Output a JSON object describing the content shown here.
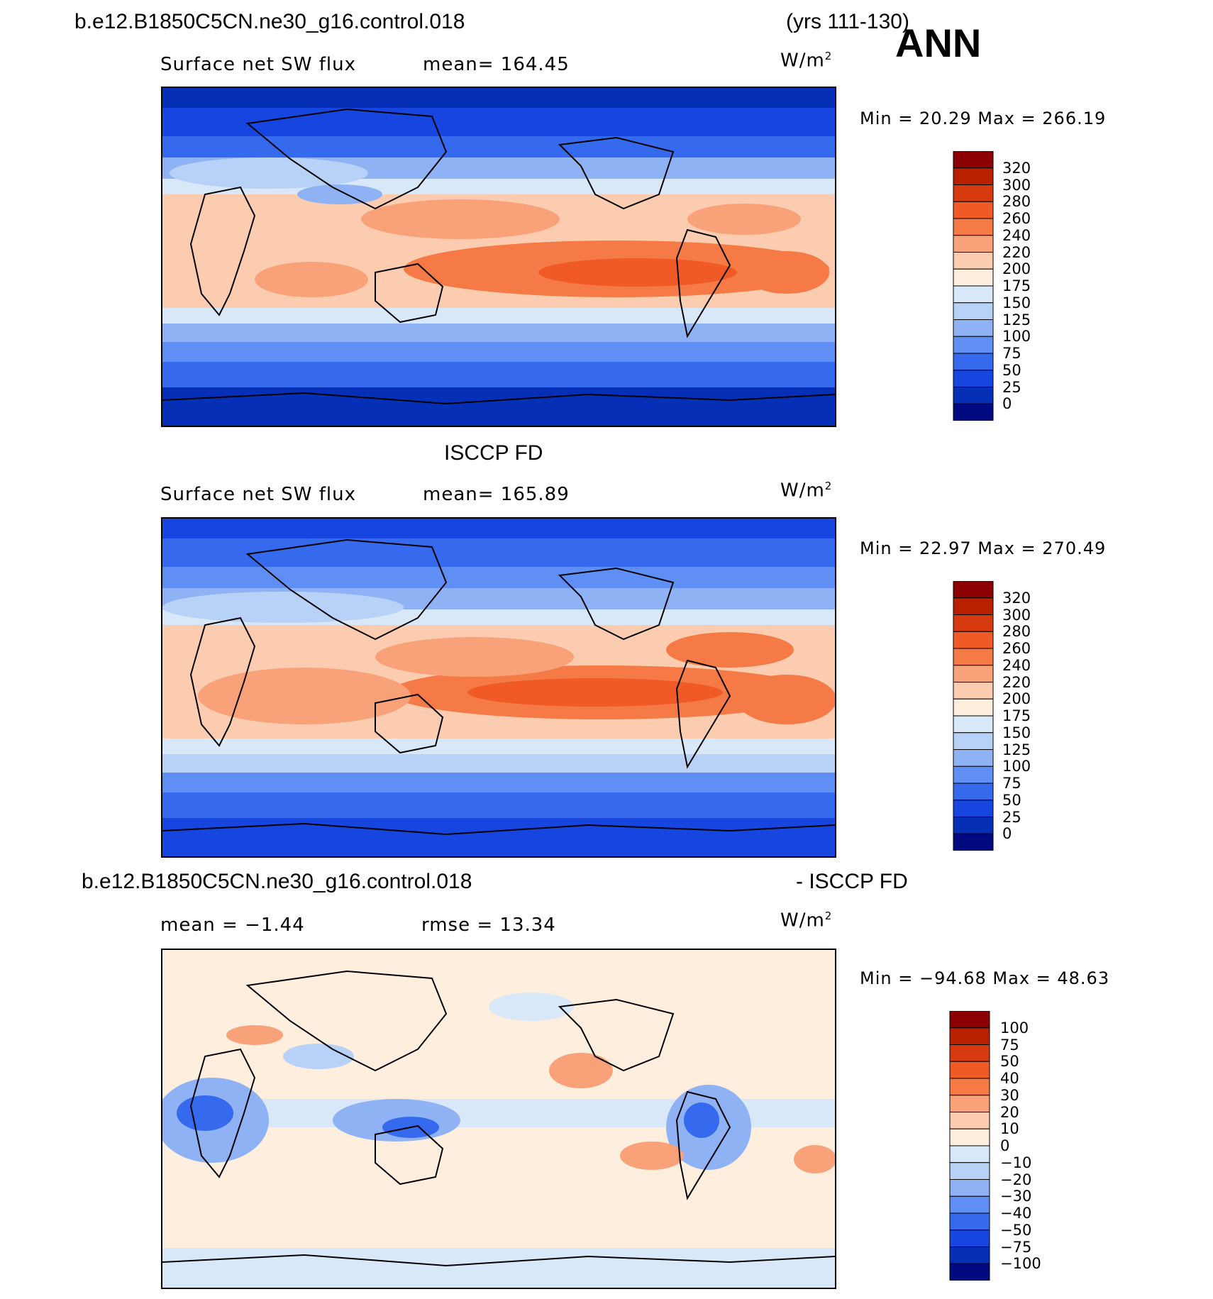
{
  "header": {
    "case_name": "b.e12.B1850C5CN.ne30_g16.control.018",
    "years": "(yrs 111-130)",
    "season": "ANN"
  },
  "panels": [
    {
      "id": "model",
      "title": "",
      "variable": "Surface net SW flux",
      "stat_left": "mean=  164.45",
      "units": "W/m",
      "units_sup": "2",
      "minmax": "Min =   20.29  Max  =  266.19",
      "colorbar_levels": [
        "320",
        "300",
        "280",
        "260",
        "240",
        "220",
        "200",
        "175",
        "150",
        "125",
        "100",
        "75",
        "50",
        "25",
        "0"
      ]
    },
    {
      "id": "obs",
      "title": "ISCCP FD",
      "variable": "Surface net SW flux",
      "stat_left": "mean=  165.89",
      "units": "W/m",
      "units_sup": "2",
      "minmax": "Min =   22.97  Max  =  270.49",
      "colorbar_levels": [
        "320",
        "300",
        "280",
        "260",
        "240",
        "220",
        "200",
        "175",
        "150",
        "125",
        "100",
        "75",
        "50",
        "25",
        "0"
      ]
    },
    {
      "id": "diff",
      "title_left": "b.e12.B1850C5CN.ne30_g16.control.018",
      "title_right": "- ISCCP FD",
      "stat_left": "mean =   −1.44",
      "stat_right": "rmse =    13.34",
      "units": "W/m",
      "units_sup": "2",
      "minmax": "Min = −94.68  Max  =    48.63",
      "colorbar_levels": [
        "100",
        "75",
        "50",
        "40",
        "30",
        "20",
        "10",
        "0",
        "−10",
        "−20",
        "−30",
        "−40",
        "−50",
        "−75",
        "−100"
      ]
    }
  ],
  "colors": {
    "abs_scale": [
      "#8b0000",
      "#b82000",
      "#d83a0f",
      "#ef5a26",
      "#f57a45",
      "#f9a27a",
      "#fcccb0",
      "#fdeede",
      "#d9e8f8",
      "#b8d2f7",
      "#8fb2f5",
      "#5f8ef5",
      "#3569ee",
      "#1745e0",
      "#062fb8",
      "#000a80"
    ],
    "diff_scale": [
      "#8b0000",
      "#b82000",
      "#d83a0f",
      "#ef5a26",
      "#f57a45",
      "#f9a27a",
      "#fcccb0",
      "#fdeede",
      "#d9e8f8",
      "#b8d2f7",
      "#8fb2f5",
      "#5f8ef5",
      "#3569ee",
      "#1745e0",
      "#062fb8",
      "#000a80"
    ]
  }
}
